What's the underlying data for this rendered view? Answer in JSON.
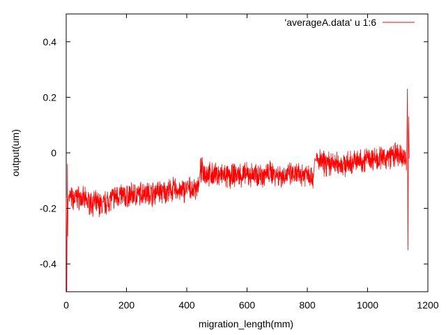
{
  "chart_data": {
    "type": "line",
    "xlabel": "migration_length(mm)",
    "ylabel": "output(um)",
    "xlim": [
      0,
      1200
    ],
    "ylim": [
      -0.5,
      0.5
    ],
    "xticks": [
      0,
      200,
      400,
      600,
      800,
      1000,
      1200
    ],
    "yticks": [
      -0.4,
      -0.2,
      0,
      0.2,
      0.4
    ],
    "xtick_labels": [
      "0",
      "200",
      "400",
      "600",
      "800",
      "1000",
      "1200"
    ],
    "ytick_labels": [
      "-0.4",
      "-0.2",
      "0",
      "0.2",
      "0.4"
    ],
    "grid": false,
    "legend_position": "top-right",
    "series": [
      {
        "name": "'averageA.data' u 1:6",
        "color": "#ff0000",
        "x": [
          0,
          2,
          4,
          5,
          6,
          10,
          20,
          40,
          60,
          80,
          100,
          120,
          140,
          160,
          180,
          200,
          220,
          240,
          260,
          280,
          300,
          320,
          340,
          360,
          380,
          400,
          420,
          440,
          445,
          460,
          480,
          500,
          520,
          540,
          560,
          580,
          600,
          620,
          640,
          660,
          680,
          700,
          720,
          740,
          760,
          780,
          800,
          820,
          825,
          830,
          840,
          860,
          880,
          900,
          920,
          940,
          960,
          980,
          1000,
          1020,
          1040,
          1060,
          1080,
          1100,
          1120,
          1130,
          1132,
          1134,
          1136,
          1138
        ],
        "y": [
          -0.16,
          -0.5,
          -0.04,
          -0.3,
          -0.17,
          -0.15,
          -0.17,
          -0.16,
          -0.17,
          -0.18,
          -0.18,
          -0.19,
          -0.17,
          -0.16,
          -0.15,
          -0.16,
          -0.15,
          -0.15,
          -0.14,
          -0.15,
          -0.14,
          -0.14,
          -0.14,
          -0.13,
          -0.14,
          -0.13,
          -0.13,
          -0.12,
          -0.06,
          -0.07,
          -0.08,
          -0.08,
          -0.08,
          -0.09,
          -0.08,
          -0.08,
          -0.08,
          -0.08,
          -0.08,
          -0.08,
          -0.07,
          -0.08,
          -0.08,
          -0.08,
          -0.08,
          -0.08,
          -0.07,
          -0.09,
          -0.02,
          -0.03,
          -0.03,
          -0.04,
          -0.04,
          -0.04,
          -0.04,
          -0.04,
          -0.03,
          -0.03,
          -0.02,
          -0.02,
          -0.02,
          -0.02,
          -0.01,
          -0.01,
          -0.02,
          -0.02,
          0.23,
          -0.35,
          0.13,
          -0.02
        ]
      }
    ]
  }
}
